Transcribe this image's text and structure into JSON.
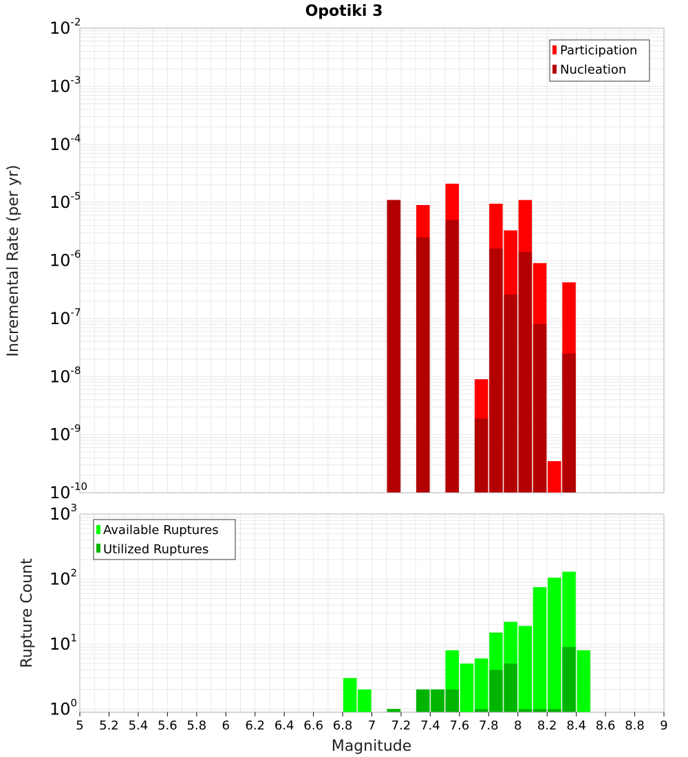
{
  "title": "Opotiki 3",
  "x_axis": {
    "label": "Magnitude",
    "ticks": [
      "5",
      "5.2",
      "5.4",
      "5.6",
      "5.8",
      "6",
      "6.2",
      "6.4",
      "6.6",
      "6.8",
      "7",
      "7.2",
      "7.4",
      "7.6",
      "7.8",
      "8",
      "8.2",
      "8.4",
      "8.6",
      "8.8",
      "9"
    ],
    "range": [
      5,
      9
    ]
  },
  "colors": {
    "participation": "#ff0000",
    "nucleation": "#b30000",
    "available": "#00ff00",
    "utilized": "#00b400",
    "grid": "#e8e8e8",
    "frame": "#b0b0b0"
  },
  "chart_data": [
    {
      "type": "bar",
      "scale": "log",
      "ylabel": "Incremental Rate (per yr)",
      "ylim_exp": [
        -10,
        -2
      ],
      "y_ticks": [
        {
          "base": "10",
          "exp": "-2"
        },
        {
          "base": "10",
          "exp": "-3"
        },
        {
          "base": "10",
          "exp": "-4"
        },
        {
          "base": "10",
          "exp": "-5"
        },
        {
          "base": "10",
          "exp": "-6"
        },
        {
          "base": "10",
          "exp": "-7"
        },
        {
          "base": "10",
          "exp": "-8"
        },
        {
          "base": "10",
          "exp": "-9"
        },
        {
          "base": "10",
          "exp": "-10"
        }
      ],
      "legend_position": "top-right",
      "series": [
        {
          "name": "Participation",
          "points": [
            {
              "x": 7.15,
              "y": 1.1e-05
            },
            {
              "x": 7.35,
              "y": 9e-06
            },
            {
              "x": 7.55,
              "y": 2.1e-05
            },
            {
              "x": 7.75,
              "y": 9e-09
            },
            {
              "x": 7.85,
              "y": 9.5e-06
            },
            {
              "x": 7.95,
              "y": 3.3e-06
            },
            {
              "x": 8.05,
              "y": 1.1e-05
            },
            {
              "x": 8.15,
              "y": 9e-07
            },
            {
              "x": 8.25,
              "y": 3.5e-10
            },
            {
              "x": 8.35,
              "y": 4.2e-07
            }
          ]
        },
        {
          "name": "Nucleation",
          "points": [
            {
              "x": 7.15,
              "y": 1.1e-05
            },
            {
              "x": 7.35,
              "y": 2.5e-06
            },
            {
              "x": 7.55,
              "y": 5e-06
            },
            {
              "x": 7.75,
              "y": 1.9e-09
            },
            {
              "x": 7.85,
              "y": 1.6e-06
            },
            {
              "x": 7.95,
              "y": 2.6e-07
            },
            {
              "x": 8.05,
              "y": 1.4e-06
            },
            {
              "x": 8.15,
              "y": 8e-08
            },
            {
              "x": 8.35,
              "y": 2.5e-08
            }
          ]
        }
      ]
    },
    {
      "type": "bar",
      "scale": "log",
      "ylabel": "Rupture Count",
      "ylim_exp": [
        -0.05,
        3
      ],
      "y_ticks": [
        {
          "base": "10",
          "exp": "3"
        },
        {
          "base": "10",
          "exp": "2"
        },
        {
          "base": "10",
          "exp": "1"
        },
        {
          "base": "10",
          "exp": "0"
        }
      ],
      "legend_position": "top-left",
      "series": [
        {
          "name": "Available Ruptures",
          "points": [
            {
              "x": 6.85,
              "y": 3
            },
            {
              "x": 6.95,
              "y": 2
            },
            {
              "x": 7.15,
              "y": 1
            },
            {
              "x": 7.35,
              "y": 2
            },
            {
              "x": 7.45,
              "y": 2
            },
            {
              "x": 7.55,
              "y": 8
            },
            {
              "x": 7.65,
              "y": 5
            },
            {
              "x": 7.75,
              "y": 6
            },
            {
              "x": 7.85,
              "y": 15
            },
            {
              "x": 7.95,
              "y": 22
            },
            {
              "x": 8.05,
              "y": 19
            },
            {
              "x": 8.15,
              "y": 75
            },
            {
              "x": 8.25,
              "y": 105
            },
            {
              "x": 8.35,
              "y": 130
            },
            {
              "x": 8.45,
              "y": 8
            }
          ]
        },
        {
          "name": "Utilized Ruptures",
          "points": [
            {
              "x": 7.15,
              "y": 1
            },
            {
              "x": 7.35,
              "y": 2
            },
            {
              "x": 7.45,
              "y": 2
            },
            {
              "x": 7.55,
              "y": 2
            },
            {
              "x": 7.75,
              "y": 1
            },
            {
              "x": 7.85,
              "y": 4
            },
            {
              "x": 7.95,
              "y": 5
            },
            {
              "x": 8.05,
              "y": 1
            },
            {
              "x": 8.15,
              "y": 1
            },
            {
              "x": 8.25,
              "y": 1
            },
            {
              "x": 8.35,
              "y": 9
            }
          ]
        }
      ]
    }
  ]
}
